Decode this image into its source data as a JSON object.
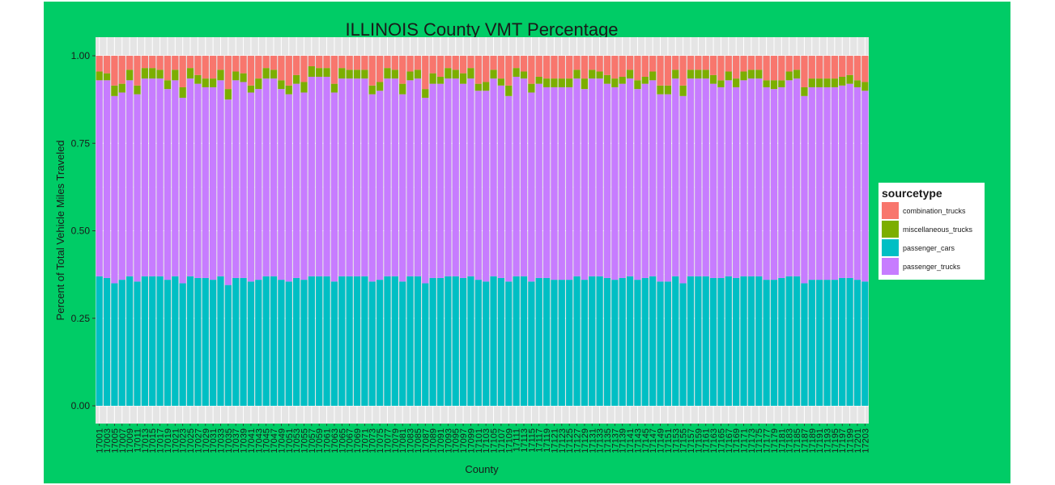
{
  "colors": {
    "frame_background": "#00cc66",
    "panel_background": "#e5e5e5",
    "gridline": "#ffffff",
    "legend_background": "#ffffff",
    "text": "#1a1a1a"
  },
  "chart_data": {
    "type": "bar",
    "stacked": "percent",
    "title": "ILLINOIS County VMT Percentage",
    "xlabel": "County",
    "ylabel": "Percent of Total Vehicle Miles Traveled",
    "ylim": [
      0,
      1
    ],
    "yticks": [
      0.0,
      0.25,
      0.5,
      0.75,
      1.0
    ],
    "ytick_labels": [
      "0.00",
      "0.25",
      "0.50",
      "0.75",
      "1.00"
    ],
    "grid": true,
    "legend": {
      "title": "sourcetype",
      "position": "right",
      "entries": [
        "combination_trucks",
        "miscellaneous_trucks",
        "passenger_cars",
        "passenger_trucks"
      ]
    },
    "categories": [
      "17001",
      "17003",
      "17005",
      "17007",
      "17009",
      "17011",
      "17013",
      "17015",
      "17017",
      "17019",
      "17021",
      "17023",
      "17025",
      "17027",
      "17029",
      "17031",
      "17033",
      "17035",
      "17037",
      "17039",
      "17041",
      "17043",
      "17045",
      "17047",
      "17049",
      "17051",
      "17053",
      "17055",
      "17057",
      "17059",
      "17061",
      "17063",
      "17065",
      "17067",
      "17069",
      "17071",
      "17073",
      "17075",
      "17077",
      "17079",
      "17081",
      "17083",
      "17085",
      "17087",
      "17089",
      "17091",
      "17093",
      "17095",
      "17097",
      "17099",
      "17101",
      "17103",
      "17105",
      "17107",
      "17109",
      "17111",
      "17113",
      "17115",
      "17117",
      "17119",
      "17121",
      "17123",
      "17125",
      "17127",
      "17129",
      "17131",
      "17133",
      "17135",
      "17137",
      "17139",
      "17141",
      "17143",
      "17145",
      "17147",
      "17149",
      "17151",
      "17153",
      "17155",
      "17157",
      "17159",
      "17161",
      "17163",
      "17165",
      "17167",
      "17169",
      "17171",
      "17173",
      "17175",
      "17177",
      "17179",
      "17181",
      "17183",
      "17185",
      "17187",
      "17189",
      "17191",
      "17193",
      "17195",
      "17197",
      "17199",
      "17201",
      "17203"
    ],
    "series": [
      {
        "name": "passenger_cars",
        "color": "#00bfc4",
        "values": [
          0.37,
          0.365,
          0.35,
          0.36,
          0.37,
          0.355,
          0.37,
          0.37,
          0.37,
          0.36,
          0.37,
          0.35,
          0.37,
          0.365,
          0.365,
          0.36,
          0.37,
          0.345,
          0.365,
          0.365,
          0.355,
          0.36,
          0.37,
          0.37,
          0.36,
          0.355,
          0.365,
          0.36,
          0.37,
          0.37,
          0.37,
          0.355,
          0.37,
          0.37,
          0.37,
          0.37,
          0.355,
          0.36,
          0.37,
          0.37,
          0.355,
          0.37,
          0.37,
          0.35,
          0.365,
          0.365,
          0.37,
          0.37,
          0.365,
          0.37,
          0.36,
          0.355,
          0.37,
          0.365,
          0.355,
          0.37,
          0.37,
          0.355,
          0.365,
          0.365,
          0.36,
          0.36,
          0.36,
          0.37,
          0.36,
          0.37,
          0.37,
          0.365,
          0.36,
          0.365,
          0.37,
          0.36,
          0.365,
          0.37,
          0.355,
          0.355,
          0.37,
          0.35,
          0.37,
          0.37,
          0.37,
          0.365,
          0.365,
          0.37,
          0.365,
          0.37,
          0.37,
          0.37,
          0.36,
          0.36,
          0.365,
          0.37,
          0.37,
          0.35,
          0.36,
          0.36,
          0.36,
          0.36,
          0.365,
          0.365,
          0.36,
          0.355
        ]
      },
      {
        "name": "passenger_trucks",
        "color": "#c77cff",
        "values": [
          0.56,
          0.565,
          0.535,
          0.535,
          0.56,
          0.535,
          0.565,
          0.565,
          0.565,
          0.545,
          0.56,
          0.53,
          0.565,
          0.555,
          0.545,
          0.55,
          0.56,
          0.53,
          0.565,
          0.56,
          0.54,
          0.545,
          0.565,
          0.565,
          0.545,
          0.535,
          0.555,
          0.535,
          0.57,
          0.57,
          0.57,
          0.54,
          0.565,
          0.565,
          0.565,
          0.565,
          0.535,
          0.54,
          0.565,
          0.565,
          0.535,
          0.56,
          0.565,
          0.53,
          0.555,
          0.555,
          0.565,
          0.565,
          0.555,
          0.565,
          0.54,
          0.545,
          0.565,
          0.55,
          0.53,
          0.57,
          0.565,
          0.54,
          0.555,
          0.545,
          0.55,
          0.55,
          0.55,
          0.565,
          0.545,
          0.565,
          0.565,
          0.555,
          0.55,
          0.555,
          0.565,
          0.545,
          0.555,
          0.56,
          0.535,
          0.535,
          0.565,
          0.535,
          0.565,
          0.565,
          0.565,
          0.555,
          0.545,
          0.56,
          0.545,
          0.56,
          0.565,
          0.565,
          0.55,
          0.545,
          0.545,
          0.56,
          0.565,
          0.535,
          0.55,
          0.55,
          0.55,
          0.55,
          0.55,
          0.555,
          0.55,
          0.545
        ]
      },
      {
        "name": "miscellaneous_trucks",
        "color": "#7cae00",
        "values": [
          0.025,
          0.02,
          0.03,
          0.025,
          0.03,
          0.025,
          0.03,
          0.03,
          0.025,
          0.025,
          0.03,
          0.03,
          0.03,
          0.025,
          0.025,
          0.025,
          0.03,
          0.03,
          0.025,
          0.025,
          0.02,
          0.03,
          0.03,
          0.025,
          0.025,
          0.025,
          0.025,
          0.03,
          0.03,
          0.025,
          0.025,
          0.025,
          0.03,
          0.025,
          0.025,
          0.025,
          0.025,
          0.025,
          0.03,
          0.025,
          0.03,
          0.025,
          0.025,
          0.025,
          0.03,
          0.02,
          0.03,
          0.025,
          0.03,
          0.03,
          0.02,
          0.025,
          0.025,
          0.02,
          0.03,
          0.025,
          0.02,
          0.025,
          0.02,
          0.025,
          0.025,
          0.025,
          0.025,
          0.025,
          0.03,
          0.025,
          0.02,
          0.025,
          0.025,
          0.02,
          0.025,
          0.025,
          0.02,
          0.025,
          0.025,
          0.025,
          0.025,
          0.03,
          0.025,
          0.025,
          0.025,
          0.025,
          0.02,
          0.025,
          0.025,
          0.025,
          0.025,
          0.025,
          0.02,
          0.025,
          0.02,
          0.025,
          0.025,
          0.025,
          0.025,
          0.025,
          0.025,
          0.025,
          0.025,
          0.025,
          0.02,
          0.025
        ]
      },
      {
        "name": "combination_trucks",
        "color": "#f8766d",
        "values": [
          0.045,
          0.05,
          0.085,
          0.08,
          0.04,
          0.085,
          0.035,
          0.035,
          0.04,
          0.07,
          0.04,
          0.09,
          0.035,
          0.055,
          0.065,
          0.065,
          0.04,
          0.095,
          0.045,
          0.05,
          0.085,
          0.065,
          0.035,
          0.04,
          0.07,
          0.085,
          0.055,
          0.075,
          0.03,
          0.035,
          0.035,
          0.08,
          0.035,
          0.04,
          0.04,
          0.04,
          0.085,
          0.075,
          0.035,
          0.04,
          0.08,
          0.045,
          0.04,
          0.095,
          0.05,
          0.06,
          0.035,
          0.04,
          0.05,
          0.035,
          0.08,
          0.075,
          0.04,
          0.065,
          0.085,
          0.035,
          0.045,
          0.08,
          0.06,
          0.065,
          0.065,
          0.065,
          0.065,
          0.04,
          0.065,
          0.04,
          0.045,
          0.055,
          0.065,
          0.06,
          0.04,
          0.07,
          0.06,
          0.045,
          0.085,
          0.085,
          0.04,
          0.085,
          0.04,
          0.04,
          0.04,
          0.055,
          0.07,
          0.045,
          0.065,
          0.045,
          0.04,
          0.04,
          0.07,
          0.07,
          0.07,
          0.045,
          0.04,
          0.09,
          0.065,
          0.065,
          0.065,
          0.065,
          0.06,
          0.055,
          0.07,
          0.075
        ]
      }
    ]
  }
}
